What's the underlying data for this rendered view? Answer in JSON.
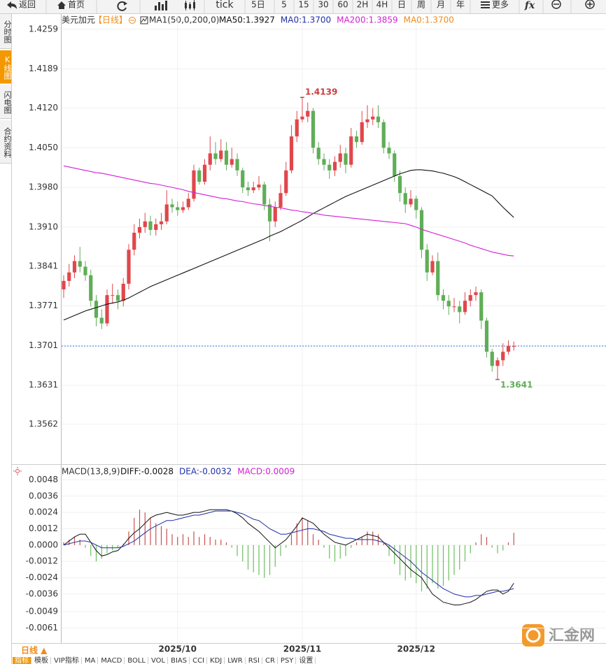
{
  "toolbar": [
    "返回",
    "首页",
    "tick",
    "5日",
    "5",
    "15",
    "30",
    "60",
    "2H",
    "4H",
    "日",
    "周",
    "月",
    "年",
    "更多"
  ],
  "sidebar": [
    "分时图",
    "K线图",
    "闪电图",
    "合约资料"
  ],
  "chart_data": [
    {
      "type": "candlestick",
      "title": "美元加元",
      "subtitle": "【日线】",
      "indicator": "MA1(50,0,200,0)",
      "up_color": "#e0474c",
      "down_color": "#5fae57",
      "open": [
        1.38,
        1.3815,
        1.383,
        1.385,
        1.384,
        1.3825,
        1.378,
        1.375,
        1.374,
        1.379,
        1.379,
        1.378,
        1.381,
        1.387,
        1.39,
        1.391,
        1.392,
        1.3905,
        1.3915,
        1.392,
        1.395,
        1.3945,
        1.394,
        1.3945,
        1.396,
        1.401,
        1.399,
        1.402,
        1.404,
        1.403,
        1.4045,
        1.402,
        1.403,
        1.401,
        1.398,
        1.3975,
        1.398,
        1.3985,
        1.395,
        1.392,
        1.3945,
        1.397,
        1.401,
        1.407,
        1.41,
        1.4105,
        1.4115,
        1.405,
        1.403,
        1.402,
        1.401,
        1.4025,
        1.404,
        1.402,
        1.407,
        1.406,
        1.4095,
        1.41,
        1.4105,
        1.4095,
        1.405,
        1.404,
        1.4,
        1.397,
        1.395,
        1.396,
        1.394,
        1.387,
        1.383,
        1.385,
        1.379,
        1.378,
        1.377,
        1.377,
        1.376,
        1.378,
        1.379,
        1.3795,
        1.3745,
        1.369,
        1.3665,
        1.3675,
        1.369,
        1.37
      ],
      "high": [
        1.3825,
        1.3845,
        1.386,
        1.3875,
        1.385,
        1.3835,
        1.379,
        1.3765,
        1.38,
        1.381,
        1.38,
        1.382,
        1.388,
        1.3915,
        1.3925,
        1.3935,
        1.393,
        1.3925,
        1.3935,
        1.3975,
        1.396,
        1.3955,
        1.3955,
        1.397,
        1.402,
        1.4015,
        1.403,
        1.407,
        1.406,
        1.4065,
        1.406,
        1.405,
        1.404,
        1.4015,
        1.399,
        1.399,
        1.4,
        1.399,
        1.396,
        1.3955,
        1.3985,
        1.4025,
        1.409,
        1.4115,
        1.4139,
        1.413,
        1.412,
        1.406,
        1.404,
        1.403,
        1.4035,
        1.4055,
        1.405,
        1.4085,
        1.408,
        1.4115,
        1.4125,
        1.412,
        1.4125,
        1.41,
        1.406,
        1.4045,
        1.401,
        1.398,
        1.3975,
        1.3965,
        1.3945,
        1.388,
        1.386,
        1.3865,
        1.38,
        1.379,
        1.3785,
        1.378,
        1.3795,
        1.38,
        1.3805,
        1.38,
        1.375,
        1.3695,
        1.368,
        1.3705,
        1.371,
        1.3708
      ],
      "low": [
        1.3785,
        1.3805,
        1.382,
        1.383,
        1.3815,
        1.377,
        1.3735,
        1.373,
        1.3735,
        1.3775,
        1.3765,
        1.377,
        1.38,
        1.386,
        1.389,
        1.39,
        1.3895,
        1.3895,
        1.3905,
        1.3915,
        1.3935,
        1.393,
        1.3935,
        1.394,
        1.3955,
        1.3985,
        1.3985,
        1.401,
        1.402,
        1.4025,
        1.401,
        1.4015,
        1.4,
        1.397,
        1.3965,
        1.397,
        1.3975,
        1.394,
        1.3885,
        1.391,
        1.394,
        1.3965,
        1.4005,
        1.406,
        1.4095,
        1.4095,
        1.404,
        1.402,
        1.401,
        1.3995,
        1.4,
        1.4015,
        1.4005,
        1.4015,
        1.405,
        1.4055,
        1.4085,
        1.409,
        1.4085,
        1.404,
        1.403,
        1.399,
        1.3955,
        1.3935,
        1.3945,
        1.3925,
        1.3855,
        1.3815,
        1.3825,
        1.378,
        1.3765,
        1.3755,
        1.376,
        1.374,
        1.3755,
        1.377,
        1.378,
        1.373,
        1.368,
        1.3655,
        1.3641,
        1.3665,
        1.3685,
        1.3692
      ],
      "close": [
        1.3815,
        1.383,
        1.385,
        1.384,
        1.3825,
        1.378,
        1.375,
        1.374,
        1.379,
        1.379,
        1.378,
        1.381,
        1.387,
        1.39,
        1.391,
        1.392,
        1.3905,
        1.3915,
        1.392,
        1.395,
        1.3945,
        1.394,
        1.3945,
        1.396,
        1.401,
        1.399,
        1.402,
        1.404,
        1.403,
        1.4045,
        1.402,
        1.403,
        1.401,
        1.398,
        1.3975,
        1.398,
        1.3985,
        1.395,
        1.392,
        1.3945,
        1.397,
        1.401,
        1.407,
        1.41,
        1.4105,
        1.4115,
        1.405,
        1.403,
        1.402,
        1.401,
        1.4025,
        1.404,
        1.402,
        1.407,
        1.406,
        1.4095,
        1.41,
        1.4105,
        1.4095,
        1.405,
        1.404,
        1.4,
        1.397,
        1.395,
        1.396,
        1.394,
        1.387,
        1.383,
        1.385,
        1.379,
        1.378,
        1.377,
        1.377,
        1.376,
        1.378,
        1.379,
        1.3795,
        1.3745,
        1.369,
        1.3665,
        1.3675,
        1.369,
        1.37,
        1.37
      ],
      "series": [
        {
          "name": "MA50:1.3927",
          "color": "#111111",
          "values": [
            1.3746,
            1.375,
            1.3754,
            1.3758,
            1.3762,
            1.3765,
            1.3768,
            1.3771,
            1.3774,
            1.3776,
            1.3778,
            1.3781,
            1.3785,
            1.379,
            1.3795,
            1.38,
            1.3805,
            1.3809,
            1.3813,
            1.3817,
            1.3821,
            1.3825,
            1.3829,
            1.3833,
            1.3837,
            1.3841,
            1.3845,
            1.3849,
            1.3853,
            1.3857,
            1.3861,
            1.3865,
            1.3869,
            1.3873,
            1.3877,
            1.3881,
            1.3885,
            1.3889,
            1.3894,
            1.3898,
            1.3902,
            1.3907,
            1.3912,
            1.3917,
            1.3922,
            1.3928,
            1.3934,
            1.3939,
            1.3944,
            1.3949,
            1.3954,
            1.3959,
            1.3964,
            1.3968,
            1.3972,
            1.3976,
            1.398,
            1.3984,
            1.3988,
            1.3992,
            1.3996,
            1.4,
            1.4004,
            1.4007,
            1.401,
            1.4011,
            1.4011,
            1.401,
            1.4009,
            1.4007,
            1.4005,
            1.4002,
            1.3999,
            1.3995,
            1.399,
            1.3985,
            1.398,
            1.3975,
            1.397,
            1.3965,
            1.3955,
            1.3945,
            1.3936,
            1.3927
          ]
        },
        {
          "name": "MA200:1.3859",
          "color": "#d51ed5",
          "values": [
            1.4018,
            1.4016,
            1.4014,
            1.4012,
            1.401,
            1.4008,
            1.4006,
            1.4005,
            1.4003,
            1.4001,
            1.3999,
            1.3997,
            1.3995,
            1.3993,
            1.3991,
            1.3989,
            1.3987,
            1.3986,
            1.3984,
            1.3982,
            1.398,
            1.3978,
            1.3976,
            1.3973,
            1.3971,
            1.3969,
            1.3967,
            1.3965,
            1.3963,
            1.3961,
            1.396,
            1.3958,
            1.3956,
            1.3955,
            1.3953,
            1.3951,
            1.395,
            1.3948,
            1.3947,
            1.3945,
            1.3944,
            1.3942,
            1.394,
            1.3939,
            1.3937,
            1.3936,
            1.3934,
            1.3933,
            1.3931,
            1.393,
            1.3929,
            1.3928,
            1.3927,
            1.3926,
            1.3925,
            1.3924,
            1.3923,
            1.3922,
            1.3921,
            1.392,
            1.3919,
            1.3918,
            1.3917,
            1.3916,
            1.3913,
            1.391,
            1.3906,
            1.3903,
            1.39,
            1.3897,
            1.3894,
            1.3891,
            1.3888,
            1.3885,
            1.3882,
            1.3878,
            1.3875,
            1.3872,
            1.3869,
            1.3866,
            1.3864,
            1.3862,
            1.386,
            1.3859
          ]
        }
      ],
      "indicator_labels": [
        {
          "text": "MA0:1.3700",
          "color": "#1f2fa8"
        },
        {
          "text": "MA0:1.3700",
          "color": "#f08c1a"
        }
      ],
      "high_label": 1.4139,
      "low_label": 1.3641,
      "reference_line": 1.37,
      "reference_color": "#3a7bd5",
      "ylim": [
        1.3493,
        1.4286
      ],
      "yticks": [
        1.4259,
        1.4189,
        {
          "value": 1.412,
          "label": "1.4120"
        },
        {
          "value": 1.405,
          "label": "1.4050"
        },
        {
          "value": 1.398,
          "label": "1.3980"
        },
        {
          "value": 1.391,
          "label": "1.3910"
        },
        1.3841,
        1.3771,
        1.3701,
        1.3631,
        1.3562
      ],
      "grid": true
    },
    {
      "type": "macd",
      "title": "MACD(13,8,9)",
      "categories": [
        null,
        null,
        null,
        null,
        null,
        null,
        null,
        null,
        null,
        null,
        null,
        null,
        null,
        null,
        null,
        null,
        null,
        null,
        null,
        null,
        null,
        "2025/10",
        null,
        null,
        null,
        null,
        null,
        null,
        null,
        null,
        null,
        null,
        null,
        null,
        null,
        null,
        null,
        null,
        null,
        null,
        null,
        null,
        null,
        null,
        "2025/11",
        null,
        null,
        null,
        null,
        null,
        null,
        null,
        null,
        null,
        null,
        null,
        null,
        null,
        null,
        null,
        null,
        null,
        null,
        null,
        null,
        "2025/12",
        null,
        null,
        null,
        null,
        null,
        null,
        null,
        null,
        null,
        null,
        null,
        null,
        null,
        null,
        null,
        null,
        null,
        null
      ],
      "series": [
        {
          "name": "DIFF:-0.0028",
          "style": "line",
          "color": "#111111",
          "values": [
            0.0,
            0.0003,
            0.0006,
            0.0008,
            0.0008,
            0.0002,
            -0.0004,
            -0.0008,
            -0.0007,
            -0.0005,
            -0.0004,
            0.0,
            0.0005,
            0.0009,
            0.0012,
            0.0016,
            0.002,
            0.0022,
            0.0023,
            0.0024,
            0.0023,
            0.0022,
            0.0022,
            0.0023,
            0.0024,
            0.0024,
            0.0025,
            0.0026,
            0.0026,
            0.0026,
            0.0026,
            0.0025,
            0.0023,
            0.002,
            0.0016,
            0.0013,
            0.001,
            0.0006,
            0.0002,
            -0.0002,
            0.0001,
            0.0004,
            0.0009,
            0.0014,
            0.002,
            0.0018,
            0.0016,
            0.0012,
            0.0008,
            0.0005,
            0.0002,
            0.0001,
            0.0,
            0.0002,
            0.0004,
            0.0006,
            0.0008,
            0.0007,
            0.0006,
            0.0002,
            -0.0002,
            -0.0006,
            -0.001,
            -0.0014,
            -0.0018,
            -0.0021,
            -0.0024,
            -0.003,
            -0.0036,
            -0.0039,
            -0.0042,
            -0.0043,
            -0.0044,
            -0.0044,
            -0.0043,
            -0.0042,
            -0.004,
            -0.0037,
            -0.0034,
            -0.0033,
            -0.0033,
            -0.0036,
            -0.0034,
            -0.0028
          ]
        },
        {
          "name": "DEA:-0.0032",
          "style": "line",
          "color": "#1f2fa8",
          "values": [
            0.0,
            0.0001,
            0.0002,
            0.0003,
            0.0003,
            0.0002,
            0.0,
            -0.0002,
            -0.0002,
            -0.0002,
            -0.0002,
            -0.0001,
            0.0001,
            0.0003,
            0.0006,
            0.0009,
            0.0012,
            0.0014,
            0.0016,
            0.0018,
            0.0018,
            0.0019,
            0.002,
            0.0021,
            0.0022,
            0.0022,
            0.0023,
            0.0024,
            0.0025,
            0.0025,
            0.0025,
            0.0025,
            0.0024,
            0.0023,
            0.0021,
            0.0019,
            0.0018,
            0.0015,
            0.0012,
            0.001,
            0.0008,
            0.0008,
            0.0009,
            0.001,
            0.0011,
            0.0012,
            0.0012,
            0.0011,
            0.001,
            0.0008,
            0.0007,
            0.0006,
            0.0005,
            0.0005,
            0.0004,
            0.0004,
            0.0004,
            0.0004,
            0.0003,
            0.0002,
            0.0,
            -0.0003,
            -0.0006,
            -0.0009,
            -0.0012,
            -0.0016,
            -0.002,
            -0.0023,
            -0.0026,
            -0.0029,
            -0.0032,
            -0.0034,
            -0.0036,
            -0.0037,
            -0.0038,
            -0.0038,
            -0.0037,
            -0.0037,
            -0.0036,
            -0.0035,
            -0.0034,
            -0.0034,
            -0.0033,
            -0.0032
          ]
        },
        {
          "name": "MACD:0.0009",
          "style": "bar",
          "color": "#d51ed5",
          "up_color": "#c9504f",
          "down_color": "#6cbf5f",
          "values": [
            0.0002,
            0.0004,
            0.0006,
            0.0004,
            -0.0002,
            -0.0008,
            -0.0012,
            -0.001,
            -0.0006,
            -0.0004,
            -0.0002,
            0.0001,
            0.001,
            0.002,
            0.0026,
            0.0024,
            0.002,
            0.0016,
            0.0014,
            0.0012,
            0.0008,
            0.0006,
            0.0008,
            0.0006,
            0.001,
            0.0006,
            0.0008,
            0.0006,
            0.0004,
            0.0004,
            0.0002,
            -0.0002,
            -0.0008,
            -0.0012,
            -0.0018,
            -0.002,
            -0.0022,
            -0.0024,
            -0.0022,
            -0.0016,
            -0.0008,
            -0.0002,
            0.0008,
            0.0016,
            0.002,
            0.0018,
            0.0008,
            0.0004,
            -0.0002,
            -0.001,
            -0.0012,
            -0.001,
            -0.0008,
            -0.0002,
            0.0002,
            0.0006,
            0.001,
            0.001,
            0.0008,
            0.0002,
            -0.0008,
            -0.0014,
            -0.0022,
            -0.0026,
            -0.0024,
            -0.0028,
            -0.0034,
            -0.0032,
            -0.0028,
            -0.0032,
            -0.003,
            -0.0026,
            -0.0022,
            -0.0018,
            -0.0012,
            -0.0006,
            0.0002,
            0.0008,
            0.0006,
            -0.0002,
            -0.0006,
            -0.0004,
            0.0002,
            0.0009
          ]
        }
      ],
      "ylim": [
        -0.0072,
        0.0059
      ],
      "yticks": [
        0.0048,
        0.0036,
        0.0024,
        0.0012,
        {
          "value": 0,
          "label": "0.0000"
        },
        -0.0012,
        -0.0024,
        -0.0036,
        -0.0049,
        -0.0061
      ],
      "grid": true
    }
  ],
  "footer": {
    "period": "日线 ▲",
    "tabs": [
      "指标",
      "模板",
      "VIP指标",
      "MA",
      "MACD",
      "BOLL",
      "VOL",
      "BIAS",
      "CCI",
      "KDJ",
      "LWR",
      "RSI",
      "CR",
      "PSY",
      "设置"
    ]
  },
  "watermark": "汇金网"
}
